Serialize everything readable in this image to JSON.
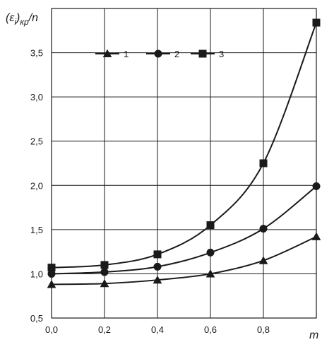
{
  "chart_data": {
    "type": "line",
    "ylabel_parts": {
      "base": "(ε",
      "sub_i": "i",
      "close": ")",
      "sub_kr": "кр",
      "tail": "/n"
    },
    "xlabel": "m",
    "xlim": [
      0.0,
      1.0
    ],
    "ylim": [
      0.5,
      4.0
    ],
    "x_ticks": [
      0.0,
      0.2,
      0.4,
      0.6,
      0.8,
      1.0
    ],
    "x_tick_labels": [
      "0,0",
      "0,2",
      "0,4",
      "0,6",
      "0,8",
      ""
    ],
    "y_ticks": [
      0.5,
      1.0,
      1.5,
      2.0,
      2.5,
      3.0,
      3.5
    ],
    "y_tick_labels": [
      "0,5",
      "1,0",
      "1,5",
      "2,0",
      "2,5",
      "3,0",
      "3,5"
    ],
    "grid": true,
    "legend_placement": "top-center",
    "x": [
      0.0,
      0.2,
      0.4,
      0.6,
      0.8,
      1.0
    ],
    "series": [
      {
        "name": "1",
        "marker": "triangle",
        "values": [
          0.88,
          0.89,
          0.93,
          1.0,
          1.15,
          1.42
        ]
      },
      {
        "name": "2",
        "marker": "circle",
        "values": [
          1.0,
          1.02,
          1.08,
          1.24,
          1.51,
          1.99
        ]
      },
      {
        "name": "3",
        "marker": "square",
        "values": [
          1.07,
          1.1,
          1.22,
          1.55,
          2.25,
          3.84
        ]
      }
    ],
    "colors": {
      "line": "#1a1a1a",
      "grid": "#1a1a1a",
      "background": "#ffffff"
    }
  }
}
